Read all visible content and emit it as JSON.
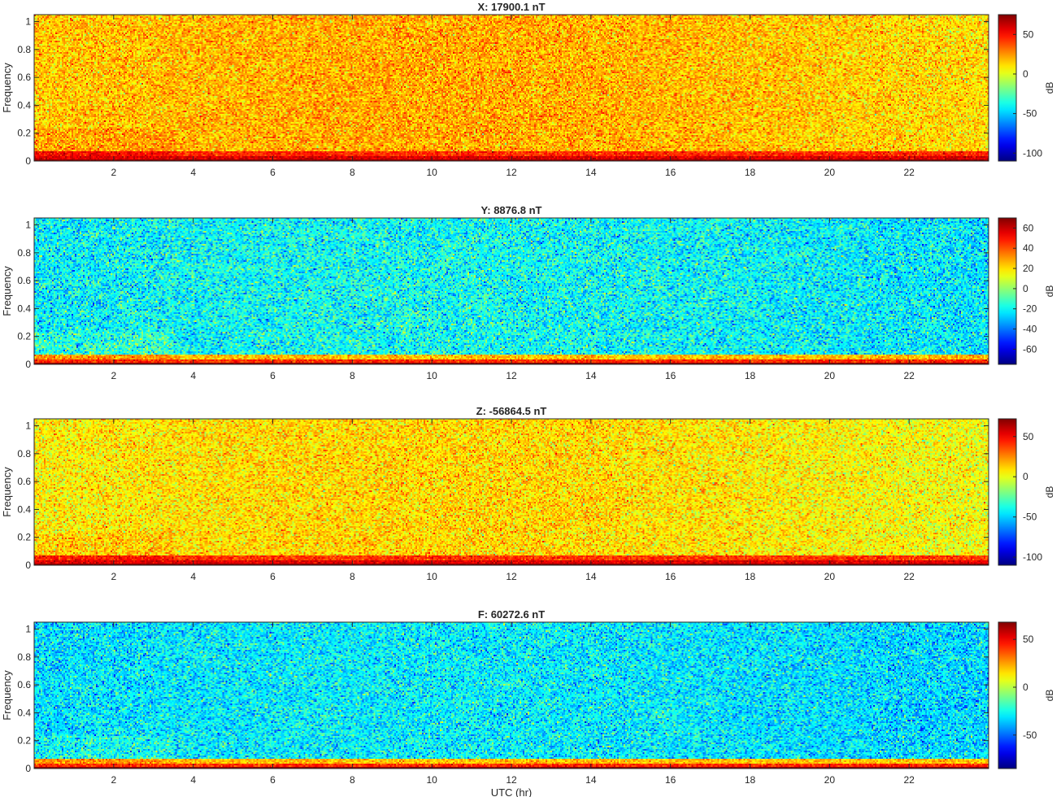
{
  "figure": {
    "xlabel": "UTC (hr)"
  },
  "colors": {
    "colormap": "jet",
    "axis_color": "#262626",
    "background": "#ffffff"
  },
  "chart_data": [
    {
      "type": "heatmap",
      "title": "X: 17900.1 nT",
      "ylabel": "Frequency",
      "xlabel": "",
      "x_ticks": [
        2,
        4,
        6,
        8,
        10,
        12,
        14,
        16,
        18,
        20,
        22
      ],
      "xlim": [
        0,
        24
      ],
      "y_ticks": [
        0,
        0.2,
        0.4,
        0.6,
        0.8,
        1
      ],
      "ylim": [
        0,
        1.05
      ],
      "colorbar": {
        "label": "dB",
        "ticks": [
          50,
          0,
          -50,
          -100
        ],
        "range": [
          -110,
          75
        ]
      },
      "description_levels": {
        "background_db": 15,
        "low_freq_band_db": 45,
        "bottom_row_db": 72
      }
    },
    {
      "type": "heatmap",
      "title": "Y: 8876.8 nT",
      "ylabel": "Frequency",
      "xlabel": "",
      "x_ticks": [
        2,
        4,
        6,
        8,
        10,
        12,
        14,
        16,
        18,
        20,
        22
      ],
      "xlim": [
        0,
        24
      ],
      "y_ticks": [
        0,
        0.2,
        0.4,
        0.6,
        0.8,
        1
      ],
      "ylim": [
        0,
        1.05
      ],
      "colorbar": {
        "label": "dB",
        "ticks": [
          60,
          40,
          20,
          0,
          -20,
          -40,
          -60
        ],
        "range": [
          -75,
          70
        ]
      },
      "description_levels": {
        "background_db": -22,
        "low_freq_band_db": 25,
        "bottom_row_db": 68
      }
    },
    {
      "type": "heatmap",
      "title": "Z: -56864.5 nT",
      "ylabel": "Frequency",
      "xlabel": "",
      "x_ticks": [
        2,
        4,
        6,
        8,
        10,
        12,
        14,
        16,
        18,
        20,
        22
      ],
      "xlim": [
        0,
        24
      ],
      "y_ticks": [
        0,
        0.2,
        0.4,
        0.6,
        0.8,
        1
      ],
      "ylim": [
        0,
        1.05
      ],
      "colorbar": {
        "label": "dB",
        "ticks": [
          50,
          0,
          -50,
          -100
        ],
        "range": [
          -110,
          72
        ]
      },
      "description_levels": {
        "background_db": 5,
        "low_freq_band_db": 40,
        "bottom_row_db": 70
      }
    },
    {
      "type": "heatmap",
      "title": "F: 60272.6 nT",
      "ylabel": "Frequency",
      "xlabel": "UTC (hr)",
      "x_ticks": [
        2,
        4,
        6,
        8,
        10,
        12,
        14,
        16,
        18,
        20,
        22
      ],
      "xlim": [
        0,
        24
      ],
      "y_ticks": [
        0,
        0.2,
        0.4,
        0.6,
        0.8,
        1
      ],
      "ylim": [
        0,
        1.05
      ],
      "colorbar": {
        "label": "dB",
        "ticks": [
          50,
          0,
          -50
        ],
        "range": [
          -85,
          68
        ]
      },
      "description_levels": {
        "background_db": -32,
        "low_freq_band_db": 20,
        "bottom_row_db": 65
      }
    }
  ]
}
